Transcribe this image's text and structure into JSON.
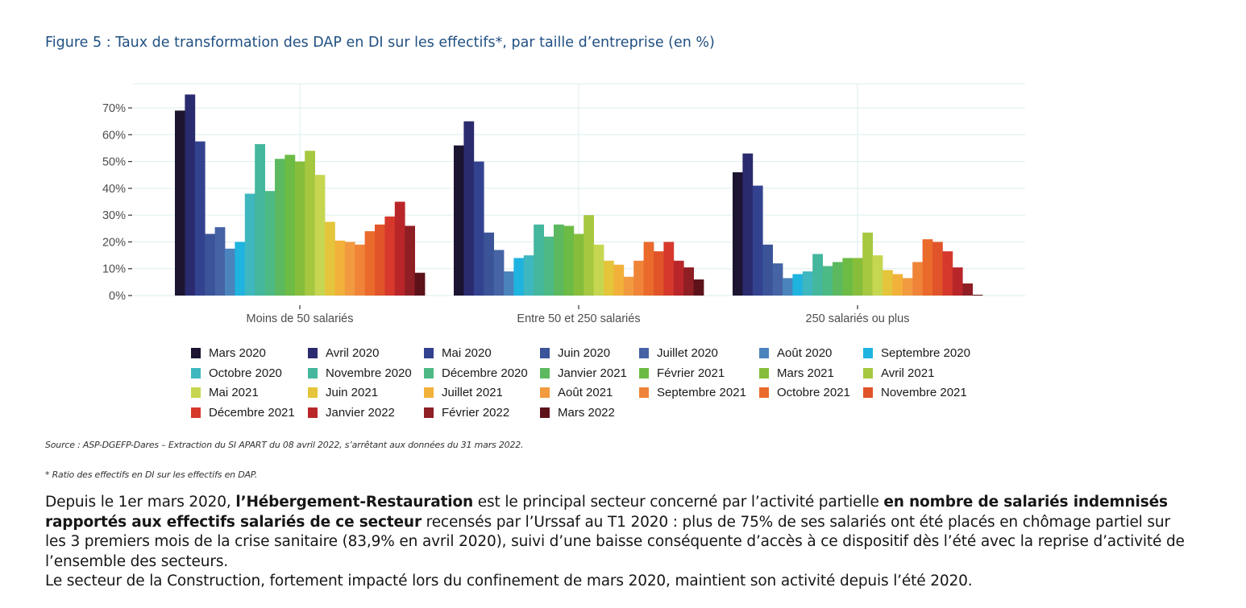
{
  "figure_title": "Figure 5 : Taux de transformation des DAP en DI sur les effectifs*, par taille d’entreprise (en %)",
  "source": "Source : ASP-DGEFP-Dares – Extraction du SI APART du 08 avril 2022, s’arrêtant aux données du 31 mars 2022.",
  "note": "* Ratio des effectifs en DI sur les effectifs en DAP.",
  "body": {
    "p1_a": "Depuis le 1er mars 2020, ",
    "p1_b": "l’Hébergement-Restauration",
    "p1_c": " est le principal secteur concerné par l’activité partielle ",
    "p1_d": "en nombre de salariés indemnisés rapportés aux effectifs salariés de ce secteur",
    "p1_e": " recensés par l’Urssaf au T1 2020 : plus de 75% de ses salariés ont été placés en chômage partiel sur les 3 premiers mois de la crise sanitaire (83,9% en avril 2020), suivi d’une baisse conséquente d’accès à ce dispositif dès l’été avec la reprise d’activité de l’ensemble des secteurs.",
    "p2": "Le secteur de la Construction, fortement impacté lors du confinement de mars 2020, maintient son activité depuis l’été 2020."
  },
  "chart_data": {
    "type": "bar",
    "title": "Figure 5 : Taux de transformation des DAP en DI sur les effectifs*, par taille d’entreprise (en %)",
    "xlabel": "",
    "ylabel": "",
    "ylim": [
      0,
      79
    ],
    "yticks": [
      0,
      10,
      20,
      30,
      40,
      50,
      60,
      70
    ],
    "ytick_labels": [
      "0%",
      "10%",
      "20%",
      "30%",
      "40%",
      "50%",
      "60%",
      "70%"
    ],
    "grid": true,
    "legend_position": "bottom",
    "categories": [
      "Moins de 50 salariés",
      "Entre 50 et 250 salariés",
      "250 salariés ou plus"
    ],
    "series": [
      {
        "name": "Mars 2020",
        "color": "#1c1430",
        "values": [
          69,
          56,
          46
        ]
      },
      {
        "name": "Avril 2020",
        "color": "#2a2a6e",
        "values": [
          75,
          65,
          53
        ]
      },
      {
        "name": "Mai 2020",
        "color": "#33428f",
        "values": [
          57.5,
          50,
          41
        ]
      },
      {
        "name": "Juin 2020",
        "color": "#3a5399",
        "values": [
          23,
          23.5,
          19
        ]
      },
      {
        "name": "Juillet 2020",
        "color": "#4563a5",
        "values": [
          25.5,
          17,
          12
        ]
      },
      {
        "name": "Août 2020",
        "color": "#4b83bd",
        "values": [
          17.5,
          9,
          6.5
        ]
      },
      {
        "name": "Septembre 2020",
        "color": "#1fb3e0",
        "values": [
          20,
          14,
          8
        ]
      },
      {
        "name": "Octobre 2020",
        "color": "#3fb7bf",
        "values": [
          38,
          15,
          9
        ]
      },
      {
        "name": "Novembre 2020",
        "color": "#44b79d",
        "values": [
          56.5,
          26.5,
          15.5
        ]
      },
      {
        "name": "Décembre 2020",
        "color": "#4dba85",
        "values": [
          39,
          22,
          11
        ]
      },
      {
        "name": "Janvier 2021",
        "color": "#5cb95f",
        "values": [
          51,
          26.5,
          12.5
        ]
      },
      {
        "name": "Février 2021",
        "color": "#6cbb45",
        "values": [
          52.5,
          26,
          14
        ]
      },
      {
        "name": "Mars 2021",
        "color": "#86be3b",
        "values": [
          50,
          23,
          14
        ]
      },
      {
        "name": "Avril 2021",
        "color": "#a6c740",
        "values": [
          54,
          30,
          23.5
        ]
      },
      {
        "name": "Mai 2021",
        "color": "#c7d651",
        "values": [
          45,
          19,
          15
        ]
      },
      {
        "name": "Juin 2021",
        "color": "#e4c53b",
        "values": [
          27.5,
          13,
          9.5
        ]
      },
      {
        "name": "Juillet 2021",
        "color": "#f2b13a",
        "values": [
          20.5,
          11.5,
          8
        ]
      },
      {
        "name": "Août 2021",
        "color": "#f29a3f",
        "values": [
          20,
          7,
          6.5
        ]
      },
      {
        "name": "Septembre 2021",
        "color": "#ef8439",
        "values": [
          19,
          13,
          12.5
        ]
      },
      {
        "name": "Octobre 2021",
        "color": "#ea6a2c",
        "values": [
          24,
          20,
          21
        ]
      },
      {
        "name": "Novembre 2021",
        "color": "#e15429",
        "values": [
          26.5,
          16.5,
          20
        ]
      },
      {
        "name": "Décembre 2021",
        "color": "#d6392c",
        "values": [
          29.5,
          20,
          16.5
        ]
      },
      {
        "name": "Janvier 2022",
        "color": "#b9262a",
        "values": [
          35,
          13,
          10.5
        ]
      },
      {
        "name": "Février 2022",
        "color": "#8f1e25",
        "values": [
          26,
          10.5,
          4.5
        ]
      },
      {
        "name": "Mars 2022",
        "color": "#5d1219",
        "values": [
          8.5,
          6,
          0.3
        ]
      }
    ]
  }
}
